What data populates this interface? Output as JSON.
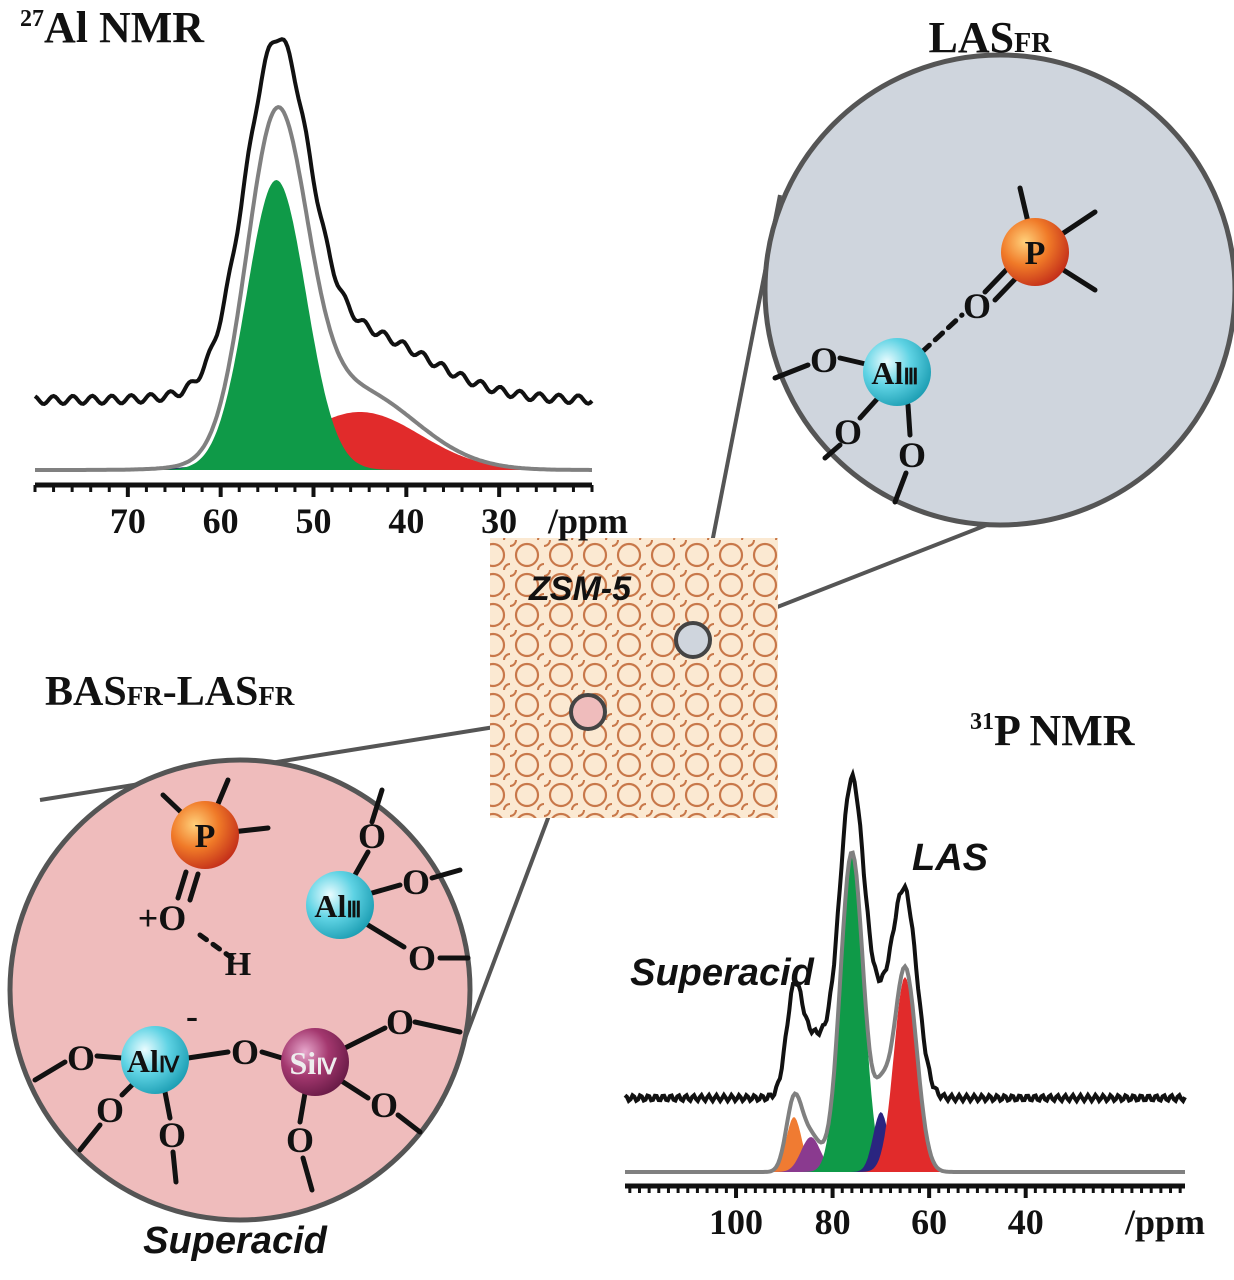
{
  "al_nmr": {
    "title_sup": "27",
    "title": "Al NMR",
    "unit": "/ppm",
    "xlim": [
      80,
      20
    ],
    "xticks": [
      70,
      60,
      50,
      40,
      30
    ]
  },
  "p_nmr": {
    "title_sup": "31",
    "title": "P NMR",
    "unit": "/ppm",
    "xlim": [
      123,
      7
    ],
    "xticks": [
      100,
      80,
      60,
      40
    ],
    "label_las": "LAS",
    "label_superacid": "Superacid"
  },
  "zsm5": {
    "label": "ZSM-5"
  },
  "las_fr": {
    "title": "LAS",
    "title_sub": "FR",
    "atom_p": "P",
    "atom_o1": "O",
    "atom_al": "Al",
    "atom_al_sub": "Ⅲ",
    "atom_o2": "O",
    "atom_o3": "O",
    "atom_o4": "O"
  },
  "bas_las_fr": {
    "title_a": "BAS",
    "title_a_sub": "FR",
    "title_b": "-LAS",
    "title_b_sub": "FR",
    "atom_p": "P",
    "atom_oh": "+O",
    "atom_h": "H",
    "atom_al3": "Al",
    "atom_al3_sub": "Ⅲ",
    "al3_o1": "O",
    "al3_o2": "O",
    "al3_o3": "O",
    "atom_al4": "Al",
    "atom_al4_sub": "Ⅳ",
    "al4_charge": "-",
    "al4_o1": "O",
    "al4_o2": "O",
    "al4_o3": "O",
    "bridge_o": "O",
    "atom_si": "Si",
    "atom_si_sub": "Ⅳ",
    "si_o1": "O",
    "si_o2": "O",
    "si_o3": "O",
    "caption": "Superacid"
  }
}
